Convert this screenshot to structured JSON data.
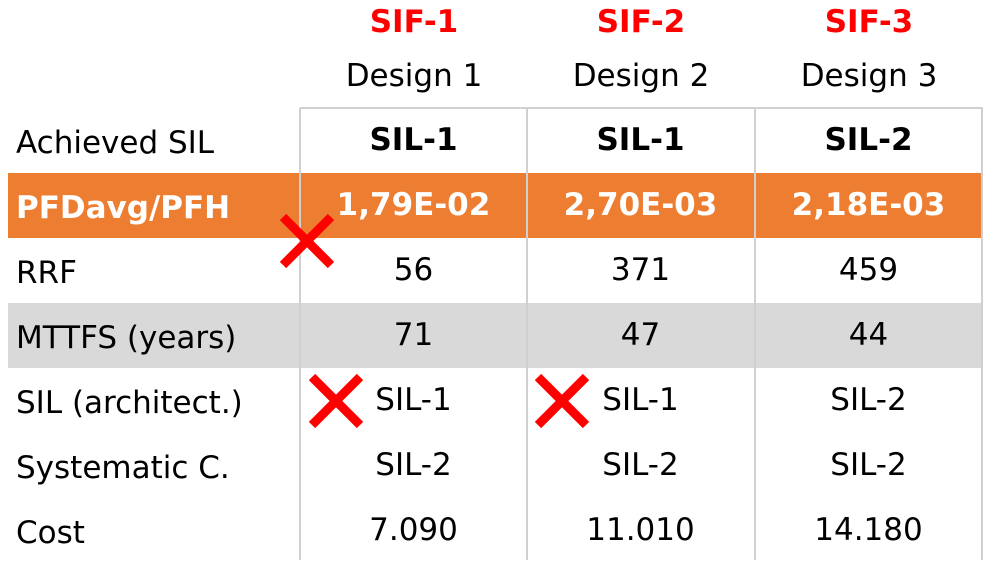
{
  "columns": [
    {
      "sif": "SIF-1",
      "design": "Design 1"
    },
    {
      "sif": "SIF-2",
      "design": "Design 2"
    },
    {
      "sif": "SIF-3",
      "design": "Design 3"
    }
  ],
  "rows": [
    {
      "label": "Achieved SIL",
      "values": [
        "SIL-1",
        "SIL-1",
        "SIL-2"
      ]
    },
    {
      "label": "PFDavg/PFH",
      "values": [
        "1,79E-02",
        "2,70E-03",
        "2,18E-03"
      ]
    },
    {
      "label": "RRF",
      "values": [
        "56",
        "371",
        "459"
      ]
    },
    {
      "label": "MTTFS (years)",
      "values": [
        "71",
        "47",
        "44"
      ]
    },
    {
      "label": "SIL (architect.)",
      "values": [
        "SIL-1",
        "SIL-1",
        "SIL-2"
      ]
    },
    {
      "label": "Systematic C.",
      "values": [
        "SIL-2",
        "SIL-2",
        "SIL-2"
      ]
    },
    {
      "label": "Cost",
      "values": [
        "7.090",
        "11.010",
        "14.180"
      ]
    }
  ],
  "colors": {
    "sif_header": "#FF0000",
    "highlight_row": "#ED7D31",
    "shaded_row": "#D9D9D9",
    "cross_mark": "#FF0000"
  }
}
